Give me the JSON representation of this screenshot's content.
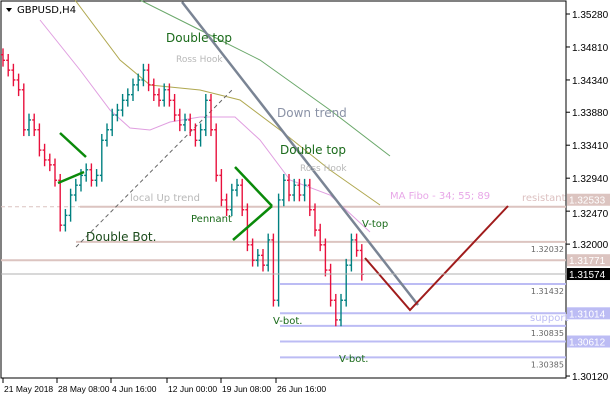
{
  "header": {
    "symbol_title": "GBPUSD,H4",
    "menu_icon": "triangle-down-icon"
  },
  "price_axis": [
    "1.35280",
    "1.34810",
    "1.34340",
    "1.33880",
    "1.33410",
    "1.32940",
    "1.32470",
    "1.32000",
    "1.30120"
  ],
  "time_axis": [
    "21 May 2018",
    "28 May 08:00",
    "4 Jun 16:00",
    "12 Jun 00:00",
    "19 Jun 08:00",
    "26 Jun 16:00"
  ],
  "current_price": "1.31574",
  "levels": [
    {
      "price": 1.32533,
      "label": "1.32533",
      "tag": true,
      "kind": "resistance"
    },
    {
      "price": 1.32032,
      "label": "1.32032",
      "tag": false,
      "kind": "resistance"
    },
    {
      "price": 1.31771,
      "label": "1.31771",
      "tag": true,
      "kind": "resistance"
    },
    {
      "price": 1.31432,
      "label": "1.31432",
      "tag": false,
      "kind": "support"
    },
    {
      "price": 1.31014,
      "label": "1.31014",
      "tag": true,
      "kind": "support"
    },
    {
      "price": 1.30835,
      "label": "1.30835",
      "tag": false,
      "kind": "support"
    },
    {
      "price": 1.30612,
      "label": "1.30612",
      "tag": true,
      "kind": "support"
    },
    {
      "price": 1.30385,
      "label": "1.30385",
      "tag": false,
      "kind": "support"
    }
  ],
  "annotations": {
    "double_top_1": "Double top",
    "ross_hook_1": "Ross Hook",
    "down_trend": "Down trend",
    "double_top_2": "Double top",
    "ross_hook_2": "Ross Hook",
    "ma_fibo": "MA Fibo - 34; 55; 89",
    "resistant": "resistant",
    "local_up_trend": "local  Up trend",
    "pennant": "Pennant",
    "double_bot": "Double Bot.",
    "v_top": "V-top",
    "v_bot_1": "V-bot.",
    "v_bot_2": "V-bot.",
    "support": "support"
  },
  "colors": {
    "bull": "#008080",
    "bear": "#e8103c",
    "resistance": "#dcc4c0",
    "support": "#bcbcf4",
    "trend": "#7a8494",
    "forecast": "#a01c1c",
    "pattern": "#0a8a0a"
  },
  "closes": [
    1.3462,
    1.3448,
    1.3434,
    1.342,
    1.3363,
    1.3377,
    1.3363,
    1.3334,
    1.332,
    1.3313,
    1.3291,
    1.3227,
    1.3241,
    1.327,
    1.3284,
    1.3298,
    1.3306,
    1.3291,
    1.3298,
    1.3348,
    1.3363,
    1.3384,
    1.3391,
    1.3405,
    1.3413,
    1.3427,
    1.3434,
    1.3448,
    1.3427,
    1.3413,
    1.3405,
    1.342,
    1.3405,
    1.3384,
    1.337,
    1.3377,
    1.3363,
    1.3348,
    1.3363,
    1.3405,
    1.3363,
    1.3298,
    1.3263,
    1.3249,
    1.3277,
    1.3284,
    1.3249,
    1.3199,
    1.3177,
    1.3184,
    1.317,
    1.3206,
    1.312,
    1.3263,
    1.3291,
    1.327,
    1.3284,
    1.327,
    1.3284,
    1.3249,
    1.322,
    1.3199,
    1.3163,
    1.312,
    1.3092,
    1.312,
    1.317,
    1.3206,
    1.3191,
    1.3157
  ]
}
